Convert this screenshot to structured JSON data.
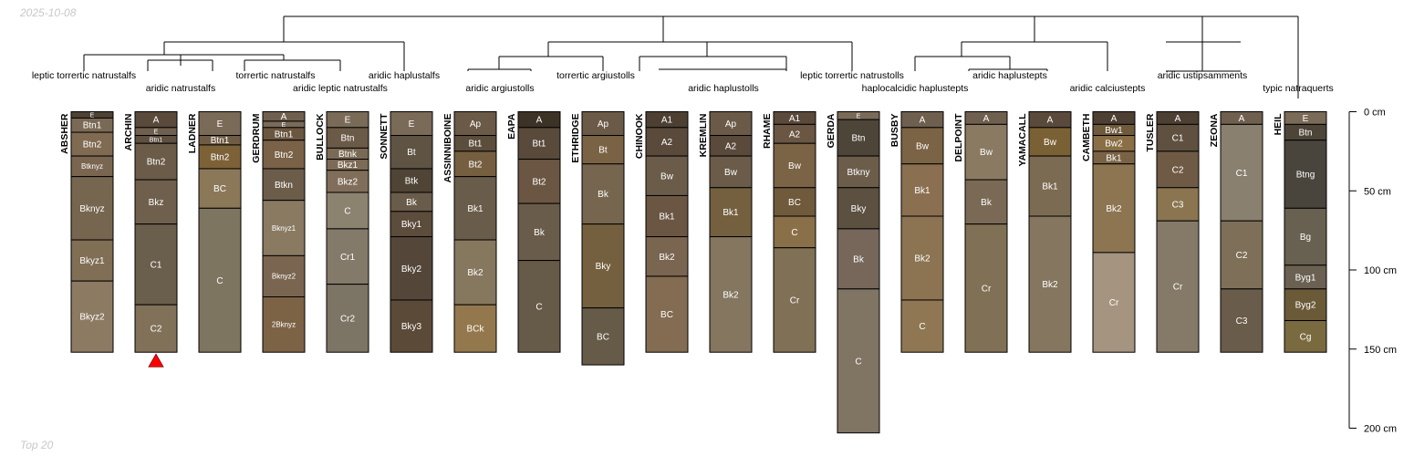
{
  "date_label": "2025-10-08",
  "footer_label": "Top 20",
  "colors": {
    "A": "#6f5f4f",
    "A1": "#4d4033",
    "A2": "#5a4a3b",
    "Ap": "#6b5a47",
    "E": "#7a6a58",
    "Btn": "#5a5246",
    "Btn1": "#7a6a55",
    "Btn2": "#806a52",
    "Bt": "#5f5444",
    "Bt1": "#5c4e3c",
    "Bt2": "#765f41",
    "Btk": "#4f4435",
    "Bw": "#7b6345",
    "Bk": "#6a5c4a",
    "Bk1": "#7c6b53",
    "Bk2": "#84765f",
    "C": "#7e7560",
    "Cr": "#807055",
    "BC": "#8a7858",
    "accent": "#ff0000"
  },
  "dendrogram_labels": [
    "leptic torrertic natrustalfs",
    "aridic natrustalfs",
    "torrertic natrustalfs",
    "aridic leptic natrustalfs",
    "aridic haplustalfs",
    "aridic argiustolls",
    "torrertic argiustolls",
    "aridic haplustolls",
    "leptic torrertic natrustolls",
    "haplocalcidic haplustepts",
    "aridic haplustepts",
    "aridic calciustepts",
    "aridic ustipsamments",
    "typic natraquerts"
  ],
  "depth_axis": {
    "ticks": [
      0,
      50,
      100,
      150,
      200
    ],
    "unit": "cm"
  },
  "marker_profile": "ARCHIN",
  "profiles": [
    {
      "name": "ABSHER",
      "horizons": [
        {
          "name": "E",
          "top": 0,
          "bottom": 4,
          "color": "#4c4235"
        },
        {
          "name": "Btn1",
          "top": 4,
          "bottom": 13,
          "color": "#7a6a55"
        },
        {
          "name": "Btn2",
          "top": 13,
          "bottom": 28,
          "color": "#806a52"
        },
        {
          "name": "Btknyz",
          "top": 28,
          "bottom": 41,
          "color": "#7a6550"
        },
        {
          "name": "Bknyz",
          "top": 41,
          "bottom": 81,
          "color": "#76664f"
        },
        {
          "name": "Bkyz1",
          "top": 81,
          "bottom": 107,
          "color": "#806e55"
        },
        {
          "name": "Bkyz2",
          "top": 107,
          "bottom": 152,
          "color": "#8c7a62"
        }
      ]
    },
    {
      "name": "ARCHIN",
      "horizons": [
        {
          "name": "A",
          "top": 0,
          "bottom": 10,
          "color": "#5a4a3b"
        },
        {
          "name": "E",
          "top": 10,
          "bottom": 15,
          "color": "#6f5f4f"
        },
        {
          "name": "Btn1",
          "top": 15,
          "bottom": 20,
          "color": "#5f5040"
        },
        {
          "name": "Btn2",
          "top": 20,
          "bottom": 43,
          "color": "#6b5c4a"
        },
        {
          "name": "Bkz",
          "top": 43,
          "bottom": 71,
          "color": "#6f604d"
        },
        {
          "name": "C1",
          "top": 71,
          "bottom": 122,
          "color": "#6a5e4c"
        },
        {
          "name": "C2",
          "top": 122,
          "bottom": 152,
          "color": "#807158"
        }
      ]
    },
    {
      "name": "LADNER",
      "horizons": [
        {
          "name": "E",
          "top": 0,
          "bottom": 15,
          "color": "#7a6a58"
        },
        {
          "name": "Btn1",
          "top": 15,
          "bottom": 21,
          "color": "#6f5c45"
        },
        {
          "name": "Btn2",
          "top": 21,
          "bottom": 36,
          "color": "#7d6238"
        },
        {
          "name": "BC",
          "top": 36,
          "bottom": 61,
          "color": "#8a7858"
        },
        {
          "name": "C",
          "top": 61,
          "bottom": 152,
          "color": "#7e7560"
        }
      ]
    },
    {
      "name": "GERDRUM",
      "horizons": [
        {
          "name": "A",
          "top": 0,
          "bottom": 6,
          "color": "#6f5f4f"
        },
        {
          "name": "E",
          "top": 6,
          "bottom": 10,
          "color": "#7a6a58"
        },
        {
          "name": "Btn1",
          "top": 10,
          "bottom": 18,
          "color": "#6b5640"
        },
        {
          "name": "Btn2",
          "top": 18,
          "bottom": 36,
          "color": "#7a6248"
        },
        {
          "name": "Btkn",
          "top": 36,
          "bottom": 56,
          "color": "#6c5d4b"
        },
        {
          "name": "Bknyz1",
          "top": 56,
          "bottom": 91,
          "color": "#8a7a62"
        },
        {
          "name": "Bknyz2",
          "top": 91,
          "bottom": 117,
          "color": "#7a6650"
        },
        {
          "name": "2Bknyz",
          "top": 117,
          "bottom": 152,
          "color": "#7d6346"
        }
      ]
    },
    {
      "name": "BULLOCK",
      "horizons": [
        {
          "name": "E",
          "top": 0,
          "bottom": 10,
          "color": "#7a6a58"
        },
        {
          "name": "Btn",
          "top": 10,
          "bottom": 23,
          "color": "#6b5a47"
        },
        {
          "name": "Btnk",
          "top": 23,
          "bottom": 30,
          "color": "#7a6a55"
        },
        {
          "name": "Bkz1",
          "top": 30,
          "bottom": 37,
          "color": "#7d6b57"
        },
        {
          "name": "Bkz2",
          "top": 37,
          "bottom": 51,
          "color": "#806e5b"
        },
        {
          "name": "C",
          "top": 51,
          "bottom": 74,
          "color": "#8c8270"
        },
        {
          "name": "Cr1",
          "top": 74,
          "bottom": 109,
          "color": "#847a6a"
        },
        {
          "name": "Cr2",
          "top": 109,
          "bottom": 152,
          "color": "#7c7464"
        }
      ]
    },
    {
      "name": "SONNETT",
      "horizons": [
        {
          "name": "E",
          "top": 0,
          "bottom": 15,
          "color": "#7a6a58"
        },
        {
          "name": "Bt",
          "top": 15,
          "bottom": 36,
          "color": "#5f5444"
        },
        {
          "name": "Btk",
          "top": 36,
          "bottom": 51,
          "color": "#4f4435"
        },
        {
          "name": "Bk",
          "top": 51,
          "bottom": 63,
          "color": "#6a5c4a"
        },
        {
          "name": "Bky1",
          "top": 63,
          "bottom": 79,
          "color": "#5c4c3c"
        },
        {
          "name": "Bky2",
          "top": 79,
          "bottom": 119,
          "color": "#54473a"
        },
        {
          "name": "Bky3",
          "top": 119,
          "bottom": 152,
          "color": "#5c4a38"
        }
      ]
    },
    {
      "name": "ASSINNIBOINE",
      "horizons": [
        {
          "name": "Ap",
          "top": 0,
          "bottom": 15,
          "color": "#6b5a47"
        },
        {
          "name": "Bt1",
          "top": 15,
          "bottom": 25,
          "color": "#5c4e3c"
        },
        {
          "name": "Bt2",
          "top": 25,
          "bottom": 41,
          "color": "#765f41"
        },
        {
          "name": "Bk1",
          "top": 41,
          "bottom": 81,
          "color": "#6a5c4a"
        },
        {
          "name": "Bk2",
          "top": 81,
          "bottom": 122,
          "color": "#86775f"
        },
        {
          "name": "BCk",
          "top": 122,
          "bottom": 152,
          "color": "#94784d"
        }
      ]
    },
    {
      "name": "EAPA",
      "horizons": [
        {
          "name": "A",
          "top": 0,
          "bottom": 10,
          "color": "#3d3226"
        },
        {
          "name": "Bt1",
          "top": 10,
          "bottom": 30,
          "color": "#5a4a3b"
        },
        {
          "name": "Bt2",
          "top": 30,
          "bottom": 58,
          "color": "#6a5642"
        },
        {
          "name": "Bk",
          "top": 58,
          "bottom": 94,
          "color": "#6a5c4a"
        },
        {
          "name": "C",
          "top": 94,
          "bottom": 152,
          "color": "#665a48"
        }
      ]
    },
    {
      "name": "ETHRIDGE",
      "horizons": [
        {
          "name": "Ap",
          "top": 0,
          "bottom": 15,
          "color": "#6b5a47"
        },
        {
          "name": "Bt",
          "top": 15,
          "bottom": 33,
          "color": "#7a6345"
        },
        {
          "name": "Bk",
          "top": 33,
          "bottom": 71,
          "color": "#76664f"
        },
        {
          "name": "Bky",
          "top": 71,
          "bottom": 124,
          "color": "#74603f"
        },
        {
          "name": "BC",
          "top": 124,
          "bottom": 160,
          "color": "#665a48"
        }
      ]
    },
    {
      "name": "CHINOOK",
      "horizons": [
        {
          "name": "A1",
          "top": 0,
          "bottom": 10,
          "color": "#4d4033"
        },
        {
          "name": "A2",
          "top": 10,
          "bottom": 28,
          "color": "#5a4a3b"
        },
        {
          "name": "Bw",
          "top": 28,
          "bottom": 53,
          "color": "#6b5c4a"
        },
        {
          "name": "Bk1",
          "top": 53,
          "bottom": 79,
          "color": "#6a5642"
        },
        {
          "name": "Bk2",
          "top": 79,
          "bottom": 104,
          "color": "#7a6550"
        },
        {
          "name": "BC",
          "top": 104,
          "bottom": 152,
          "color": "#836c52"
        }
      ]
    },
    {
      "name": "KREMLIN",
      "horizons": [
        {
          "name": "Ap",
          "top": 0,
          "bottom": 15,
          "color": "#6b5a47"
        },
        {
          "name": "A2",
          "top": 15,
          "bottom": 28,
          "color": "#5a4a3b"
        },
        {
          "name": "Bw",
          "top": 28,
          "bottom": 48,
          "color": "#6b5c4a"
        },
        {
          "name": "Bk1",
          "top": 48,
          "bottom": 79,
          "color": "#74603f"
        },
        {
          "name": "Bk2",
          "top": 79,
          "bottom": 152,
          "color": "#84765f"
        }
      ]
    },
    {
      "name": "RHAME",
      "horizons": [
        {
          "name": "A1",
          "top": 0,
          "bottom": 8,
          "color": "#5a4a3b"
        },
        {
          "name": "A2",
          "top": 8,
          "bottom": 20,
          "color": "#6a5642"
        },
        {
          "name": "Bw",
          "top": 20,
          "bottom": 48,
          "color": "#7b6345"
        },
        {
          "name": "BC",
          "top": 48,
          "bottom": 66,
          "color": "#6f5a3c"
        },
        {
          "name": "C",
          "top": 66,
          "bottom": 86,
          "color": "#8a7048"
        },
        {
          "name": "Cr",
          "top": 86,
          "bottom": 152,
          "color": "#807055"
        }
      ]
    },
    {
      "name": "GERDA",
      "horizons": [
        {
          "name": "E",
          "top": 0,
          "bottom": 5,
          "color": "#7a6a58"
        },
        {
          "name": "Btn",
          "top": 5,
          "bottom": 28,
          "color": "#4d4538"
        },
        {
          "name": "Btkny",
          "top": 28,
          "bottom": 48,
          "color": "#6c5d4b"
        },
        {
          "name": "Bky",
          "top": 48,
          "bottom": 74,
          "color": "#5c5040"
        },
        {
          "name": "Bk",
          "top": 74,
          "bottom": 112,
          "color": "#76675a"
        },
        {
          "name": "C",
          "top": 112,
          "bottom": 203,
          "color": "#807463"
        }
      ]
    },
    {
      "name": "BUSBY",
      "horizons": [
        {
          "name": "A",
          "top": 0,
          "bottom": 10,
          "color": "#6f5f4f"
        },
        {
          "name": "Bw",
          "top": 10,
          "bottom": 33,
          "color": "#7b6345"
        },
        {
          "name": "Bk1",
          "top": 33,
          "bottom": 66,
          "color": "#8a7050"
        },
        {
          "name": "Bk2",
          "top": 66,
          "bottom": 119,
          "color": "#8c7352"
        },
        {
          "name": "C",
          "top": 119,
          "bottom": 152,
          "color": "#8f7753"
        }
      ]
    },
    {
      "name": "DELPOINT",
      "horizons": [
        {
          "name": "A",
          "top": 0,
          "bottom": 8,
          "color": "#6f5f4f"
        },
        {
          "name": "Bw",
          "top": 8,
          "bottom": 43,
          "color": "#8a7a62"
        },
        {
          "name": "Bk",
          "top": 43,
          "bottom": 71,
          "color": "#7a6a55"
        },
        {
          "name": "Cr",
          "top": 71,
          "bottom": 152,
          "color": "#807055"
        }
      ]
    },
    {
      "name": "YAMACALL",
      "horizons": [
        {
          "name": "A",
          "top": 0,
          "bottom": 10,
          "color": "#5a4a3b"
        },
        {
          "name": "Bw",
          "top": 10,
          "bottom": 28,
          "color": "#7a6135"
        },
        {
          "name": "Bk1",
          "top": 28,
          "bottom": 66,
          "color": "#7c6b53"
        },
        {
          "name": "Bk2",
          "top": 66,
          "bottom": 152,
          "color": "#84765f"
        }
      ]
    },
    {
      "name": "CAMBETH",
      "horizons": [
        {
          "name": "A",
          "top": 0,
          "bottom": 8,
          "color": "#4d4033"
        },
        {
          "name": "Bw1",
          "top": 8,
          "bottom": 15,
          "color": "#6f5a3c"
        },
        {
          "name": "Bw2",
          "top": 15,
          "bottom": 25,
          "color": "#8a6e45"
        },
        {
          "name": "Bk1",
          "top": 25,
          "bottom": 33,
          "color": "#7a6345"
        },
        {
          "name": "Bk2",
          "top": 33,
          "bottom": 89,
          "color": "#8c7550"
        },
        {
          "name": "Cr",
          "top": 89,
          "bottom": 152,
          "color": "#a59480"
        }
      ]
    },
    {
      "name": "TUSLER",
      "horizons": [
        {
          "name": "A",
          "top": 0,
          "bottom": 8,
          "color": "#4d4033"
        },
        {
          "name": "C1",
          "top": 8,
          "bottom": 25,
          "color": "#5f5040"
        },
        {
          "name": "C2",
          "top": 25,
          "bottom": 48,
          "color": "#6f5a45"
        },
        {
          "name": "C3",
          "top": 48,
          "bottom": 69,
          "color": "#8a7550"
        },
        {
          "name": "Cr",
          "top": 69,
          "bottom": 152,
          "color": "#857a68"
        }
      ]
    },
    {
      "name": "ZEONA",
      "horizons": [
        {
          "name": "A",
          "top": 0,
          "bottom": 8,
          "color": "#6f5f4f"
        },
        {
          "name": "C1",
          "top": 8,
          "bottom": 69,
          "color": "#8a8070"
        },
        {
          "name": "C2",
          "top": 69,
          "bottom": 112,
          "color": "#7e7058"
        },
        {
          "name": "C3",
          "top": 112,
          "bottom": 152,
          "color": "#6a5c4a"
        }
      ]
    },
    {
      "name": "HEIL",
      "horizons": [
        {
          "name": "E",
          "top": 0,
          "bottom": 8,
          "color": "#7a6a58"
        },
        {
          "name": "Btn",
          "top": 8,
          "bottom": 18,
          "color": "#4d4538"
        },
        {
          "name": "Btng",
          "top": 18,
          "bottom": 61,
          "color": "#4a453c"
        },
        {
          "name": "Bg",
          "top": 61,
          "bottom": 97,
          "color": "#686050"
        },
        {
          "name": "Byg1",
          "top": 97,
          "bottom": 112,
          "color": "#6b6152"
        },
        {
          "name": "Byg2",
          "top": 112,
          "bottom": 132,
          "color": "#6a5a38"
        },
        {
          "name": "Cg",
          "top": 132,
          "bottom": 152,
          "color": "#7a6a40"
        }
      ]
    }
  ]
}
